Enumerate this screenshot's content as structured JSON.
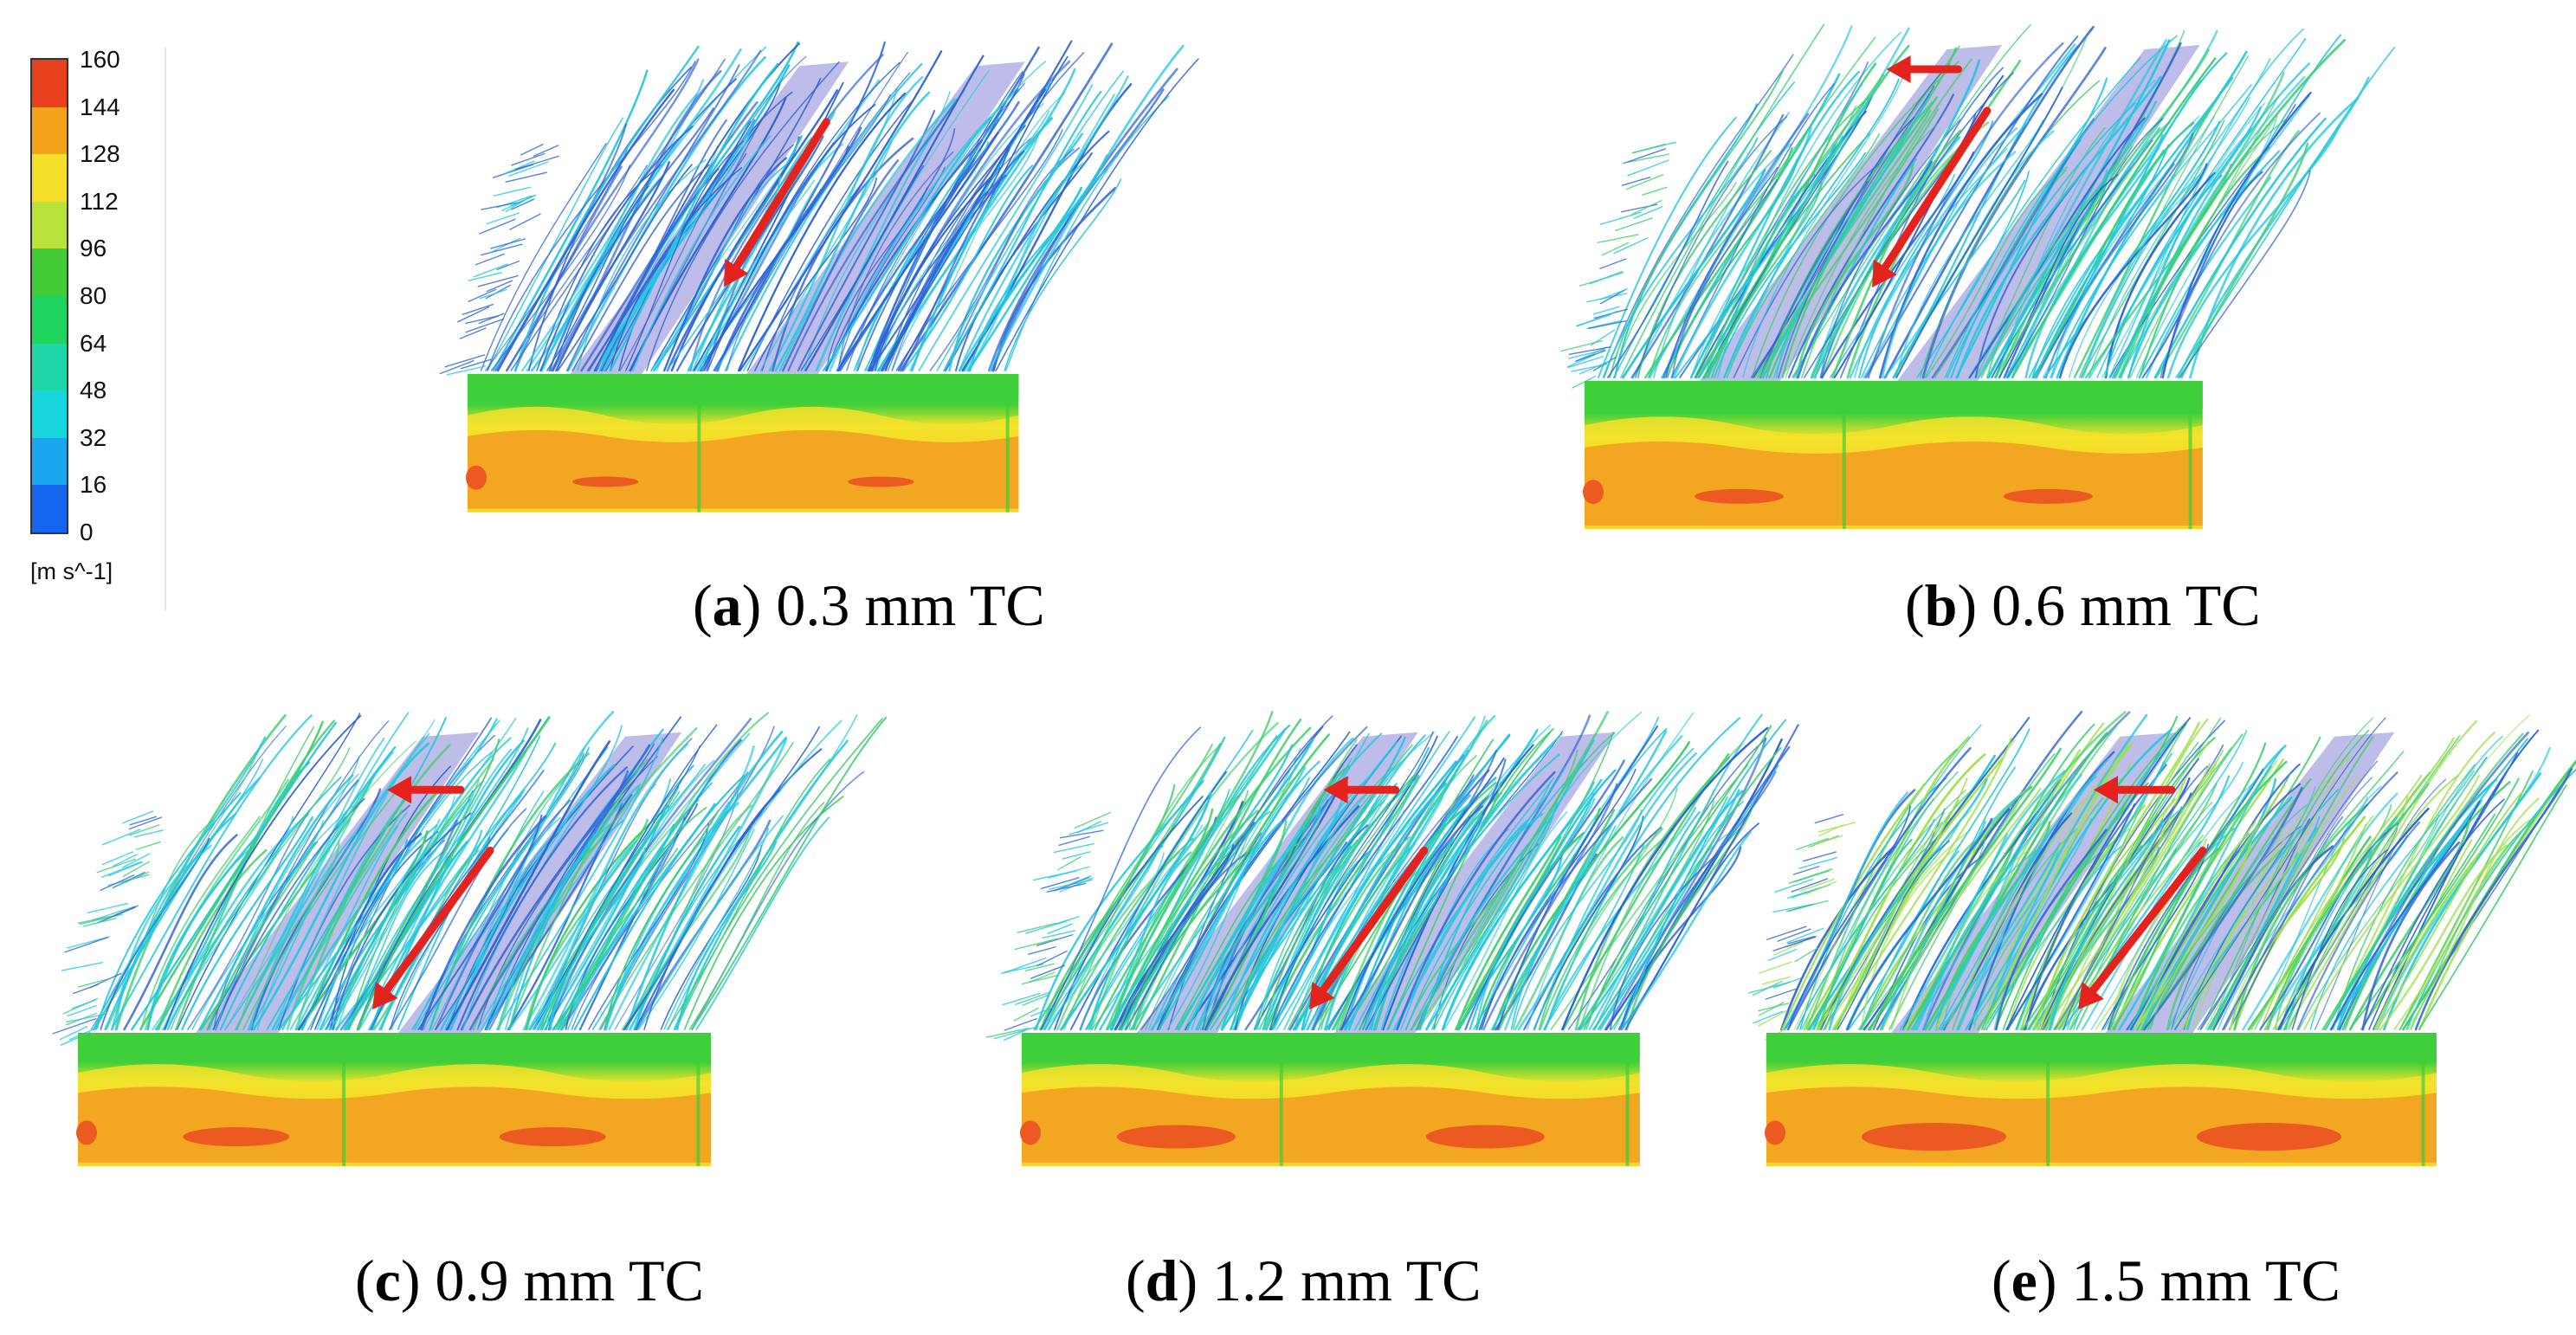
{
  "legend": {
    "ticks": [
      "160",
      "144",
      "128",
      "112",
      "96",
      "80",
      "64",
      "48",
      "32",
      "16",
      "0"
    ],
    "unit": "[m s^-1]",
    "colors": [
      "#e8401c",
      "#f3a21c",
      "#f4e02a",
      "#b9e33a",
      "#43cc38",
      "#1fd35f",
      "#1fd6a6",
      "#19d6dd",
      "#1aa7ef",
      "#1565ee"
    ]
  },
  "panels": [
    {
      "letter": "a",
      "label": "0.3 mm TC",
      "arrows": 1
    },
    {
      "letter": "b",
      "label": "0.6 mm TC",
      "arrows": 2
    },
    {
      "letter": "c",
      "label": "0.9 mm TC",
      "arrows": 2
    },
    {
      "letter": "d",
      "label": "1.2 mm TC",
      "arrows": 2
    },
    {
      "letter": "e",
      "label": "1.5 mm TC",
      "arrows": 2
    }
  ],
  "colors": {
    "arrow": "#e4231e",
    "blade": "#b7b5e6",
    "streamline_blue": "#2f63d8",
    "streamline_cyan": "#22c8e0",
    "streamline_green": "#3ecf6d",
    "contour_green": "#3fcf3a",
    "contour_yellow": "#f3e22c",
    "contour_orange": "#f2a622",
    "contour_red": "#eb5a20"
  }
}
